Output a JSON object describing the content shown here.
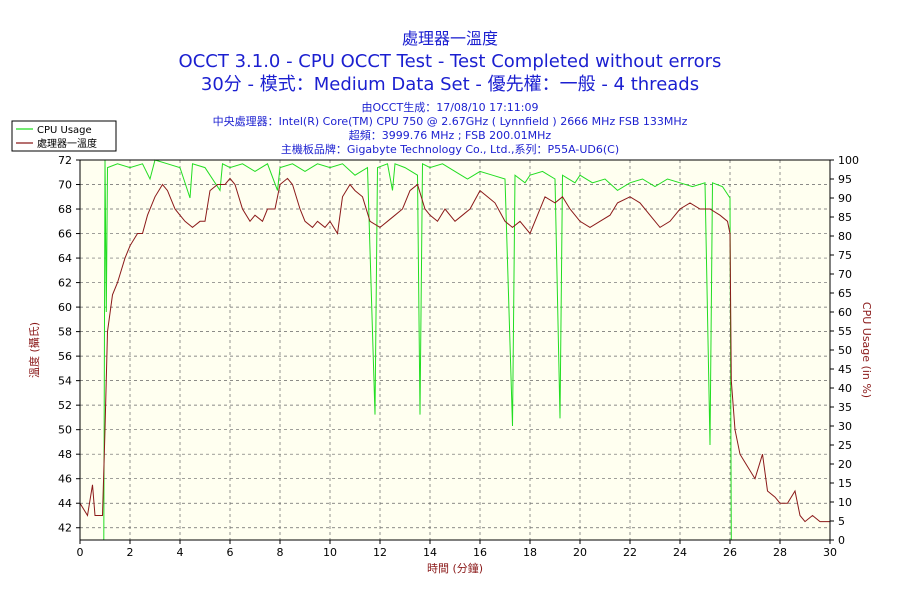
{
  "header": {
    "line1": "處理器一溫度",
    "line2": "OCCT 3.1.0 - CPU OCCT Test - Test Completed without errors",
    "line3": "30分 - 模式：Medium Data Set - 優先權：一般 - 4 threads",
    "info1": "由OCCT生成：17/08/10 17:11:09",
    "info2": "中央處理器：Intel(R) Core(TM) CPU 750 @ 2.67GHz ( Lynnfield ) 2666 MHz FSB 133MHz",
    "info3": "超頻：3999.76 MHz ; FSB 200.01MHz",
    "info4": "主機板品牌：Gigabyte Technology Co., Ltd.,系列：P55A-UD6(C)"
  },
  "colors": {
    "cpu_usage": "#22dd22",
    "temperature": "#8b1a1a",
    "plot_bg": "#fffff0",
    "grid": "#666666",
    "title": "#1b1fd0"
  },
  "chart_data": {
    "type": "line",
    "xlabel": "時間 (分鐘)",
    "ylabel_left": "溫度 (攝氏)",
    "ylabel_right": "CPU Usage (in %)",
    "xlim": [
      0,
      30
    ],
    "ylim_left": [
      41,
      72
    ],
    "ylim_right": [
      0,
      100
    ],
    "x_ticks": [
      0,
      2,
      4,
      6,
      8,
      10,
      12,
      14,
      16,
      18,
      20,
      22,
      24,
      26,
      28,
      30
    ],
    "y_ticks_left": [
      42,
      44,
      46,
      48,
      50,
      52,
      54,
      56,
      58,
      60,
      62,
      64,
      66,
      68,
      70,
      72
    ],
    "y_ticks_right": [
      0,
      5,
      10,
      15,
      20,
      25,
      30,
      35,
      40,
      45,
      50,
      55,
      60,
      65,
      70,
      75,
      80,
      85,
      90,
      95,
      100
    ],
    "grid": true,
    "legend_position": "top-left",
    "series": [
      {
        "name": "CPU Usage",
        "axis": "right",
        "points": [
          [
            0,
            0
          ],
          [
            0.95,
            0
          ],
          [
            1.0,
            100
          ],
          [
            1.05,
            60
          ],
          [
            1.1,
            98
          ],
          [
            1.5,
            99
          ],
          [
            2.0,
            98
          ],
          [
            2.5,
            99
          ],
          [
            2.8,
            95
          ],
          [
            3.0,
            100
          ],
          [
            3.5,
            99
          ],
          [
            4.0,
            98
          ],
          [
            4.4,
            90
          ],
          [
            4.5,
            99
          ],
          [
            5.0,
            98
          ],
          [
            5.6,
            92
          ],
          [
            5.7,
            99
          ],
          [
            6.0,
            98
          ],
          [
            6.5,
            99
          ],
          [
            7.0,
            97
          ],
          [
            7.5,
            99
          ],
          [
            7.9,
            92
          ],
          [
            8.0,
            98
          ],
          [
            8.5,
            99
          ],
          [
            9.0,
            97
          ],
          [
            9.5,
            99
          ],
          [
            10.0,
            98
          ],
          [
            10.5,
            99
          ],
          [
            11.0,
            96
          ],
          [
            11.5,
            98
          ],
          [
            11.8,
            33
          ],
          [
            11.9,
            98
          ],
          [
            12.3,
            99
          ],
          [
            12.5,
            92
          ],
          [
            12.6,
            99
          ],
          [
            13.0,
            98
          ],
          [
            13.5,
            96
          ],
          [
            13.6,
            33
          ],
          [
            13.7,
            99
          ],
          [
            14.0,
            98
          ],
          [
            14.5,
            99
          ],
          [
            15.0,
            97
          ],
          [
            15.5,
            95
          ],
          [
            16.0,
            97
          ],
          [
            16.5,
            96
          ],
          [
            17.0,
            95
          ],
          [
            17.3,
            30
          ],
          [
            17.4,
            96
          ],
          [
            17.8,
            94
          ],
          [
            18.0,
            96
          ],
          [
            18.5,
            97
          ],
          [
            19.0,
            95
          ],
          [
            19.2,
            32
          ],
          [
            19.3,
            96
          ],
          [
            19.8,
            94
          ],
          [
            20.0,
            96
          ],
          [
            20.5,
            94
          ],
          [
            21.0,
            95
          ],
          [
            21.5,
            92
          ],
          [
            22.0,
            94
          ],
          [
            22.5,
            95
          ],
          [
            23.0,
            93
          ],
          [
            23.5,
            95
          ],
          [
            24.0,
            94
          ],
          [
            24.5,
            93
          ],
          [
            25.0,
            94
          ],
          [
            25.2,
            25
          ],
          [
            25.3,
            94
          ],
          [
            25.7,
            93
          ],
          [
            26.0,
            90
          ],
          [
            26.05,
            0
          ],
          [
            30,
            0
          ]
        ]
      },
      {
        "name": "處理器一溫度",
        "axis": "left",
        "points": [
          [
            0,
            44
          ],
          [
            0.3,
            43
          ],
          [
            0.5,
            45.5
          ],
          [
            0.6,
            43
          ],
          [
            0.9,
            43
          ],
          [
            1.0,
            50
          ],
          [
            1.1,
            58
          ],
          [
            1.3,
            61
          ],
          [
            1.5,
            62
          ],
          [
            1.8,
            64
          ],
          [
            2.0,
            65
          ],
          [
            2.3,
            66
          ],
          [
            2.5,
            66
          ],
          [
            2.7,
            67.5
          ],
          [
            3.0,
            69
          ],
          [
            3.3,
            70
          ],
          [
            3.5,
            69.5
          ],
          [
            3.8,
            68
          ],
          [
            4.0,
            67.5
          ],
          [
            4.2,
            67
          ],
          [
            4.5,
            66.5
          ],
          [
            4.8,
            67
          ],
          [
            5.0,
            67
          ],
          [
            5.2,
            69.5
          ],
          [
            5.5,
            70
          ],
          [
            5.8,
            70
          ],
          [
            6.0,
            70.5
          ],
          [
            6.2,
            70
          ],
          [
            6.5,
            68
          ],
          [
            6.8,
            67
          ],
          [
            7.0,
            67.5
          ],
          [
            7.3,
            67
          ],
          [
            7.5,
            68
          ],
          [
            7.8,
            68
          ],
          [
            8.0,
            70
          ],
          [
            8.3,
            70.5
          ],
          [
            8.5,
            70
          ],
          [
            8.8,
            68
          ],
          [
            9.0,
            67
          ],
          [
            9.3,
            66.5
          ],
          [
            9.5,
            67
          ],
          [
            9.8,
            66.5
          ],
          [
            10.0,
            67
          ],
          [
            10.3,
            66
          ],
          [
            10.5,
            69
          ],
          [
            10.8,
            70
          ],
          [
            11.0,
            69.5
          ],
          [
            11.3,
            69
          ],
          [
            11.6,
            67
          ],
          [
            12.0,
            66.5
          ],
          [
            12.3,
            67
          ],
          [
            12.6,
            67.5
          ],
          [
            12.9,
            68
          ],
          [
            13.2,
            69.5
          ],
          [
            13.5,
            70
          ],
          [
            13.8,
            68
          ],
          [
            14.0,
            67.5
          ],
          [
            14.3,
            67
          ],
          [
            14.6,
            68
          ],
          [
            15.0,
            67
          ],
          [
            15.3,
            67.5
          ],
          [
            15.6,
            68
          ],
          [
            16.0,
            69.5
          ],
          [
            16.3,
            69
          ],
          [
            16.6,
            68.5
          ],
          [
            17.0,
            67
          ],
          [
            17.3,
            66.5
          ],
          [
            17.6,
            67
          ],
          [
            18.0,
            66
          ],
          [
            18.3,
            67.5
          ],
          [
            18.6,
            69
          ],
          [
            19.0,
            68.5
          ],
          [
            19.3,
            69
          ],
          [
            19.6,
            68
          ],
          [
            20.0,
            67
          ],
          [
            20.4,
            66.5
          ],
          [
            20.8,
            67
          ],
          [
            21.2,
            67.5
          ],
          [
            21.5,
            68.5
          ],
          [
            22.0,
            69
          ],
          [
            22.4,
            68.5
          ],
          [
            22.8,
            67.5
          ],
          [
            23.2,
            66.5
          ],
          [
            23.6,
            67
          ],
          [
            24.0,
            68
          ],
          [
            24.4,
            68.5
          ],
          [
            24.8,
            68
          ],
          [
            25.2,
            68
          ],
          [
            25.6,
            67.5
          ],
          [
            25.9,
            67
          ],
          [
            26.0,
            66
          ],
          [
            26.05,
            54
          ],
          [
            26.2,
            50
          ],
          [
            26.4,
            48
          ],
          [
            26.7,
            47
          ],
          [
            27.0,
            46
          ],
          [
            27.3,
            48
          ],
          [
            27.5,
            45
          ],
          [
            27.8,
            44.5
          ],
          [
            28.0,
            44
          ],
          [
            28.3,
            44
          ],
          [
            28.6,
            45
          ],
          [
            28.8,
            43
          ],
          [
            29.0,
            42.5
          ],
          [
            29.3,
            43
          ],
          [
            29.6,
            42.5
          ],
          [
            30.0,
            42.5
          ]
        ]
      }
    ]
  }
}
